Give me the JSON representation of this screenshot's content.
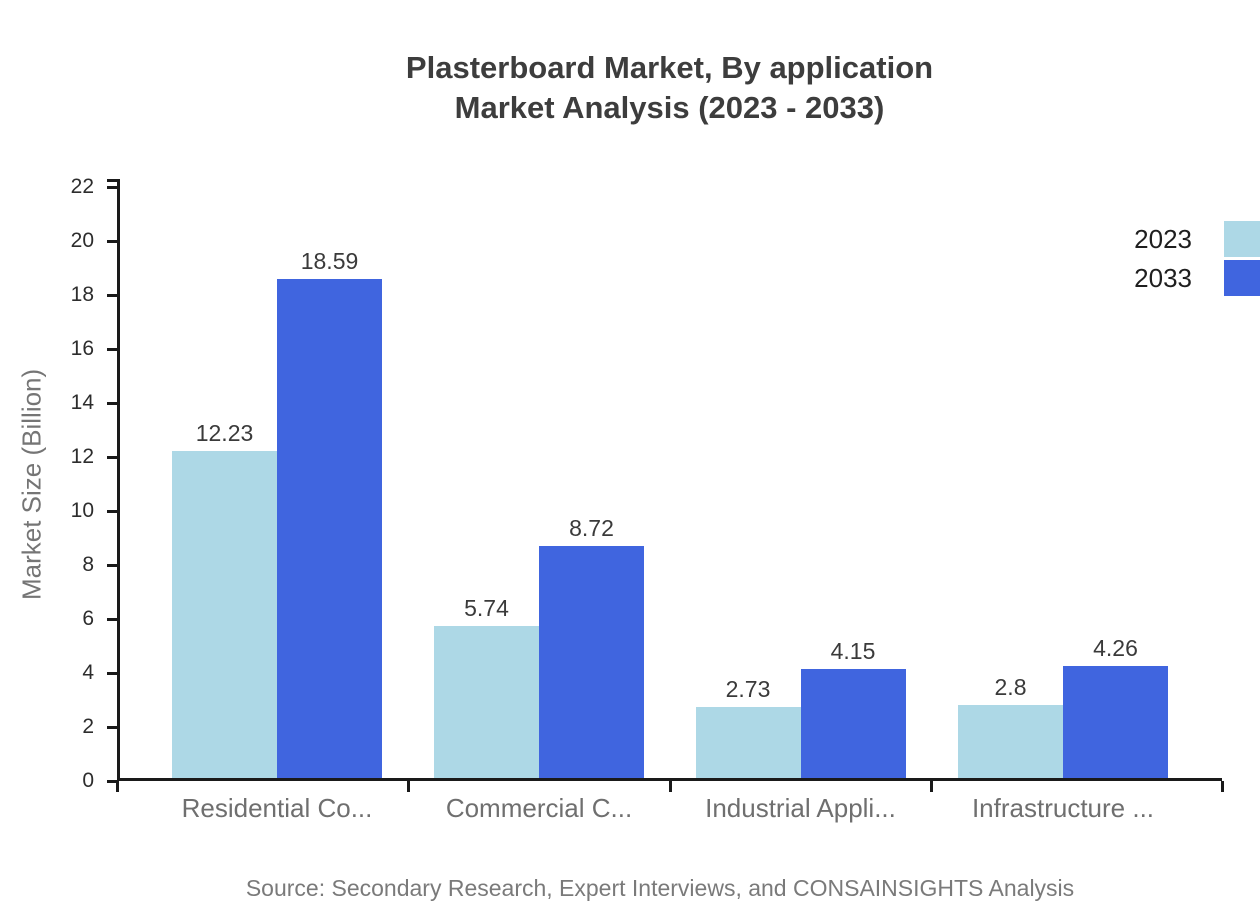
{
  "header": {
    "title_line1": "Plasterboard Market, By application",
    "title_line2": "Market Analysis (2023 - 2033)"
  },
  "chart_data": {
    "type": "bar",
    "title": "Plasterboard Market, By application Market Analysis (2023 - 2033)",
    "categories": [
      "Residential Co...",
      "Commercial C...",
      "Industrial Appli...",
      "Infrastructure ..."
    ],
    "series": [
      {
        "name": "2023",
        "color": "#ADD8E6",
        "values": [
          12.23,
          5.74,
          2.73,
          2.8
        ],
        "labels": [
          "12.23",
          "5.74",
          "2.73",
          "2.8"
        ]
      },
      {
        "name": "2033",
        "color": "#4065DF",
        "values": [
          18.59,
          8.72,
          4.15,
          4.26
        ],
        "labels": [
          "18.59",
          "8.72",
          "4.15",
          "4.26"
        ]
      }
    ],
    "xlabel": "",
    "ylabel": "Market Size (Billion)",
    "ylim": [
      0,
      22
    ],
    "ytick_step": 2,
    "yticks": [
      0,
      2,
      4,
      6,
      8,
      10,
      12,
      14,
      16,
      18,
      20,
      22
    ],
    "grid": false,
    "legend_position": "top-right",
    "axis_color": "#1a1a1a"
  },
  "footer": {
    "source": "Source: Secondary Research, Expert Interviews, and CONSAINSIGHTS Analysis"
  }
}
